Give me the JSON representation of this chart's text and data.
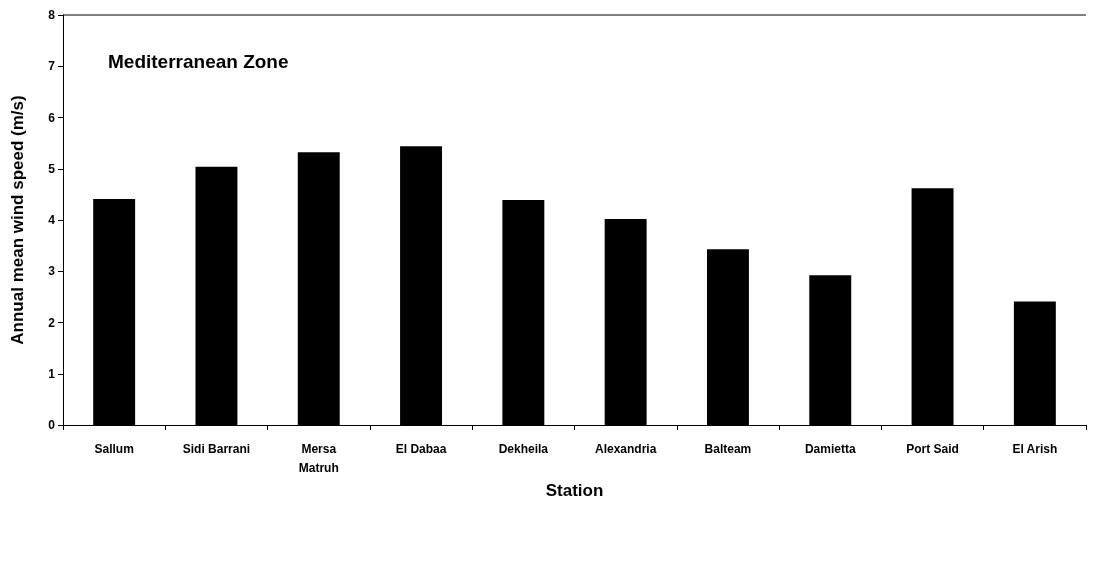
{
  "chart_data": {
    "type": "bar",
    "annotations": [
      "Mediterranean Zone"
    ],
    "xlabel": "Station",
    "ylabel": "Annual mean wind speed (m/s)",
    "categories": [
      "Sallum",
      "Sidi Barrani",
      "Mersa\nMatruh",
      "El Dabaa",
      "Dekheila",
      "Alexandria",
      "Balteam",
      "Damietta",
      "Port Said",
      "El Arish"
    ],
    "values": [
      4.41,
      5.04,
      5.32,
      5.44,
      4.39,
      4.02,
      3.43,
      2.92,
      4.62,
      2.41
    ],
    "color": "#000000",
    "ylim": [
      0,
      8
    ],
    "yticks": [
      0,
      1,
      2,
      3,
      4,
      5,
      6,
      7,
      8
    ],
    "grid": false
  }
}
